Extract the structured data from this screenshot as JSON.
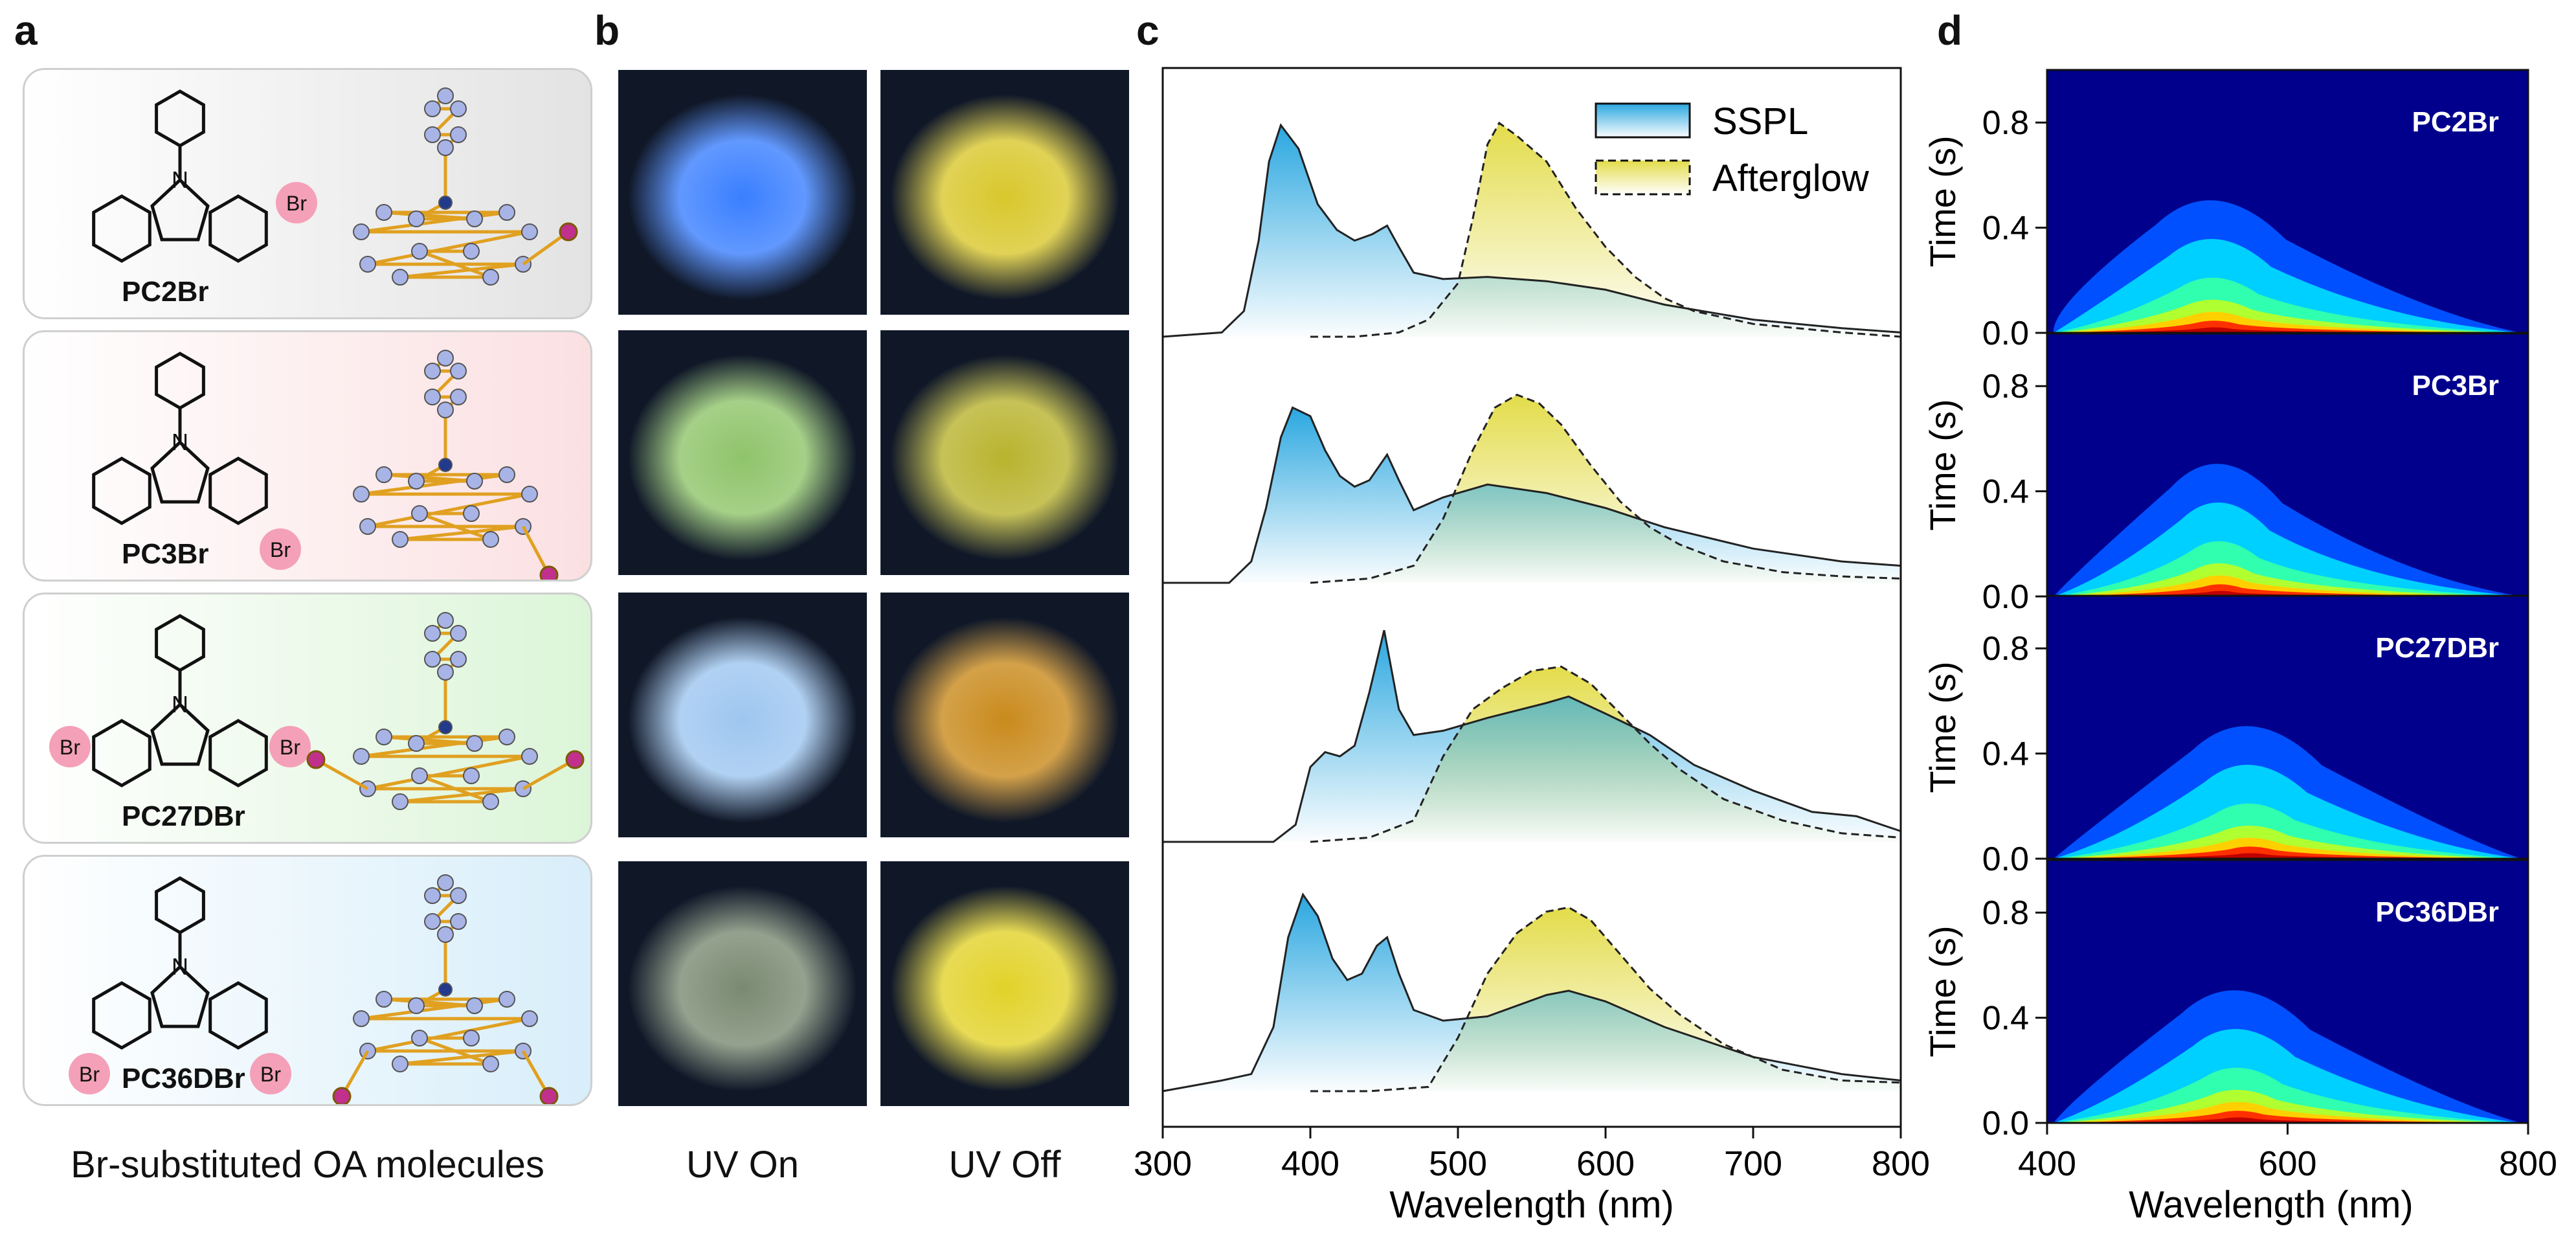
{
  "panel_labels": {
    "a": "a",
    "b": "b",
    "c": "c",
    "d": "d"
  },
  "panel_a": {
    "molecules": [
      {
        "name": "PC2Br",
        "substituent": "Br",
        "bg": [
          "#ffffff",
          "#e3e3e3"
        ]
      },
      {
        "name": "PC3Br",
        "substituent": "Br",
        "bg": [
          "#ffffff",
          "#fbe0e2"
        ]
      },
      {
        "name": "PC27DBr",
        "substituent": "Br",
        "bg": [
          "#ffffff",
          "#dcf5d8"
        ]
      },
      {
        "name": "PC36DBr",
        "substituent": "Br",
        "bg": [
          "#ffffff",
          "#d8eefa"
        ]
      }
    ],
    "caption": "Br-substituted OA molecules"
  },
  "panel_b": {
    "column_labels": [
      "UV On",
      "UV Off"
    ],
    "photos": [
      {
        "uv_on": "#3a7fff",
        "uv_off": "#d9c72c"
      },
      {
        "uv_on": "#8fc46a",
        "uv_off": "#b9b32e"
      },
      {
        "uv_on": "#9ec6f0",
        "uv_off": "#c98a1c"
      },
      {
        "uv_on": "#7a8a72",
        "uv_off": "#e2d22a"
      }
    ]
  },
  "chart_data": [
    {
      "type": "line",
      "panel": "c",
      "title": "",
      "xlabel": "Wavelength (nm)",
      "ylabel": "",
      "xlim": [
        300,
        800
      ],
      "xticks": [
        "300",
        "400",
        "500",
        "600",
        "700",
        "800"
      ],
      "legend": {
        "position": "top-right",
        "entries": [
          "SSPL",
          "Afterglow"
        ]
      },
      "stacked_offsets": true,
      "series_groups": [
        {
          "molecule": "PC2Br",
          "SSPL": {
            "x": [
              300,
              340,
              355,
              365,
              372,
              380,
              392,
              405,
              418,
              430,
              442,
              452,
              460,
              470,
              490,
              520,
              560,
              600,
              640,
              700,
              760,
              800
            ],
            "y": [
              0,
              0.02,
              0.12,
              0.45,
              0.82,
              0.99,
              0.88,
              0.62,
              0.5,
              0.45,
              0.48,
              0.52,
              0.42,
              0.3,
              0.27,
              0.28,
              0.26,
              0.22,
              0.15,
              0.08,
              0.04,
              0.02
            ]
          },
          "Afterglow": {
            "x": [
              400,
              430,
              460,
              480,
              500,
              510,
              520,
              528,
              540,
              560,
              580,
              600,
              620,
              640,
              660,
              700,
              760,
              800
            ],
            "y": [
              0,
              0,
              0.02,
              0.08,
              0.25,
              0.55,
              0.9,
              1.0,
              0.94,
              0.82,
              0.6,
              0.42,
              0.28,
              0.18,
              0.12,
              0.06,
              0.02,
              0.0
            ]
          }
        },
        {
          "molecule": "PC3Br",
          "SSPL": {
            "x": [
              300,
              345,
              360,
              370,
              380,
              388,
              400,
              410,
              420,
              430,
              440,
              452,
              460,
              470,
              490,
              520,
              560,
              600,
              640,
              700,
              760,
              800
            ],
            "y": [
              0,
              0.0,
              0.1,
              0.35,
              0.68,
              0.82,
              0.78,
              0.62,
              0.5,
              0.45,
              0.48,
              0.6,
              0.48,
              0.34,
              0.4,
              0.46,
              0.42,
              0.35,
              0.26,
              0.16,
              0.1,
              0.08
            ]
          },
          "Afterglow": {
            "x": [
              400,
              440,
              470,
              490,
              510,
              525,
              540,
              555,
              570,
              590,
              610,
              630,
              650,
              680,
              720,
              760,
              800
            ],
            "y": [
              0,
              0.02,
              0.08,
              0.3,
              0.62,
              0.82,
              0.88,
              0.84,
              0.74,
              0.55,
              0.38,
              0.26,
              0.18,
              0.1,
              0.05,
              0.03,
              0.02
            ]
          }
        },
        {
          "molecule": "PC27DBr",
          "SSPL": {
            "x": [
              300,
              375,
              390,
              400,
              410,
              420,
              430,
              440,
              450,
              460,
              470,
              490,
              520,
              560,
              575,
              600,
              630,
              660,
              700,
              740,
              770,
              800
            ],
            "y": [
              0,
              0.0,
              0.08,
              0.35,
              0.42,
              0.4,
              0.45,
              0.7,
              0.99,
              0.62,
              0.5,
              0.52,
              0.58,
              0.65,
              0.68,
              0.6,
              0.5,
              0.36,
              0.24,
              0.14,
              0.12,
              0.05
            ]
          },
          "Afterglow": {
            "x": [
              400,
              440,
              470,
              490,
              510,
              530,
              550,
              570,
              590,
              610,
              630,
              650,
              680,
              720,
              760,
              800
            ],
            "y": [
              0,
              0.02,
              0.1,
              0.4,
              0.62,
              0.72,
              0.8,
              0.82,
              0.74,
              0.6,
              0.46,
              0.34,
              0.2,
              0.1,
              0.04,
              0.02
            ]
          }
        },
        {
          "molecule": "PC36DBr",
          "SSPL": {
            "x": [
              300,
              340,
              360,
              375,
              385,
              395,
              405,
              415,
              425,
              435,
              445,
              452,
              460,
              470,
              490,
              520,
              560,
              575,
              600,
              640,
              700,
              760,
              800
            ],
            "y": [
              0,
              0.05,
              0.08,
              0.3,
              0.72,
              0.92,
              0.82,
              0.62,
              0.52,
              0.55,
              0.68,
              0.72,
              0.55,
              0.38,
              0.33,
              0.35,
              0.45,
              0.47,
              0.42,
              0.3,
              0.16,
              0.08,
              0.05
            ]
          },
          "Afterglow": {
            "x": [
              400,
              440,
              480,
              500,
              520,
              540,
              560,
              575,
              590,
              610,
              630,
              650,
              680,
              720,
              760,
              800
            ],
            "y": [
              0,
              0.0,
              0.02,
              0.25,
              0.55,
              0.74,
              0.84,
              0.86,
              0.8,
              0.64,
              0.48,
              0.36,
              0.22,
              0.1,
              0.05,
              0.04
            ]
          }
        }
      ],
      "colors": {
        "SSPL_fill": "#2aa7e0",
        "Afterglow_fill": "#e6e36a"
      }
    },
    {
      "type": "heatmap",
      "panel": "d",
      "xlabel": "Wavelength (nm)",
      "ylabel": "Time (s)",
      "xlim": [
        400,
        800
      ],
      "ylim": [
        0.0,
        1.0
      ],
      "xticks": [
        "400",
        "600",
        "800"
      ],
      "yticks": [
        "0.0",
        "0.4",
        "0.8"
      ],
      "panels": [
        {
          "label": "PC2Br",
          "peak_nm": 540,
          "spread": "wide"
        },
        {
          "label": "PC3Br",
          "peak_nm": 545,
          "spread": "medium"
        },
        {
          "label": "PC27DBr",
          "peak_nm": 570,
          "spread": "wide"
        },
        {
          "label": "PC36DBr",
          "peak_nm": 560,
          "spread": "wide"
        }
      ],
      "colormap": [
        "#00008c",
        "#0050ff",
        "#00d0ff",
        "#30ffb0",
        "#b0ff30",
        "#ffd000",
        "#ff3000",
        "#c00000"
      ]
    }
  ]
}
